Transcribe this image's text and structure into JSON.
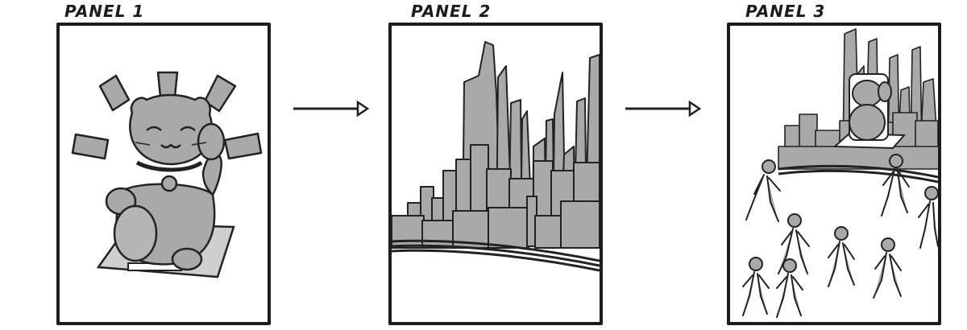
{
  "panels": [
    {
      "label": "PANEL 1",
      "content": "beckoning-cat"
    },
    {
      "label": "PANEL 2",
      "content": "city-skyline"
    },
    {
      "label": "PANEL 3",
      "content": "crowd-in-city"
    }
  ],
  "colors": {
    "ink": "#1d1d1d",
    "fill_gray": "#a9a9a9",
    "light_gray": "#cfcfcf",
    "paper": "#ffffff"
  }
}
